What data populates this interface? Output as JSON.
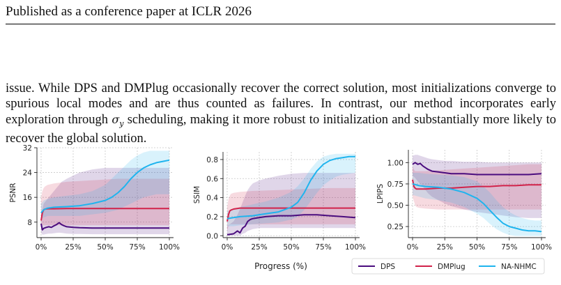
{
  "header": {
    "text": "Published as a conference paper at ICLR 2026"
  },
  "paragraph": {
    "part1": "issue. While DPS and DMPlug occasionally recover the correct solution, most initializations converge to spurious local modes and are thus counted as failures. In contrast, our method incorporates early exploration through ",
    "sigma": "σ",
    "sigma_sub": "y",
    "part2": " scheduling, making it more robust to initialization and substantially more likely to recover the global solution."
  },
  "figure": {
    "xlabel": "Progress (%)",
    "legend": [
      {
        "name": "DPS",
        "color": "#4a0c7e"
      },
      {
        "name": "DMPlug",
        "color": "#d1224a"
      },
      {
        "name": "NA-NHMC",
        "color": "#1fb4ee"
      }
    ]
  },
  "chart_data": [
    {
      "type": "line",
      "ylabel": "PSNR",
      "xticks": [
        "0%",
        "25%",
        "50%",
        "75%",
        "100%"
      ],
      "yticks": [
        "8",
        "16",
        "24",
        "32"
      ],
      "xlim": [
        0,
        100
      ],
      "ylim": [
        3,
        32
      ],
      "grid": true,
      "series": [
        {
          "name": "DPS",
          "x": [
            0,
            1,
            2,
            4,
            6,
            8,
            10,
            12,
            14,
            16,
            18,
            20,
            25,
            30,
            40,
            50,
            60,
            70,
            80,
            90,
            100
          ],
          "values": [
            7.5,
            5.5,
            6.0,
            6.3,
            6.5,
            6.3,
            6.8,
            7.2,
            7.8,
            7.2,
            6.8,
            6.5,
            6.3,
            6.2,
            6.1,
            6.1,
            6.1,
            6.1,
            6.1,
            6.1,
            6.1
          ],
          "band_low": [
            4.5,
            4.0,
            4.0,
            4.2,
            4.3,
            4.3,
            4.4,
            4.5,
            4.6,
            4.5,
            4.4,
            4.3,
            4.2,
            4.2,
            4.1,
            4.1,
            4.1,
            4.1,
            4.1,
            4.1,
            4.1
          ],
          "band_high": [
            11,
            12,
            14,
            15,
            16,
            17,
            18,
            19,
            20,
            21,
            21.5,
            22,
            23,
            24,
            25,
            25.5,
            25.5,
            25.5,
            25.5,
            25.5,
            25.5
          ]
        },
        {
          "name": "DMPlug",
          "x": [
            0,
            1,
            2,
            3,
            5,
            10,
            20,
            40,
            60,
            80,
            100
          ],
          "values": [
            8.5,
            11.0,
            12.0,
            12.2,
            12.3,
            12.3,
            12.4,
            12.4,
            12.4,
            12.4,
            12.4
          ],
          "band_low": [
            6,
            7,
            7,
            7,
            7,
            7,
            7,
            7,
            7,
            7,
            7
          ],
          "band_high": [
            16,
            18,
            19,
            19.5,
            20,
            20.5,
            21,
            21.5,
            22,
            22,
            22
          ]
        },
        {
          "name": "NA-NHMC",
          "x": [
            0,
            2,
            5,
            10,
            20,
            30,
            40,
            50,
            55,
            60,
            65,
            70,
            75,
            80,
            85,
            90,
            95,
            100
          ],
          "values": [
            11.0,
            12.0,
            12.5,
            12.8,
            13.0,
            13.3,
            14.0,
            15.0,
            16.0,
            17.5,
            19.5,
            22.0,
            24.0,
            25.5,
            26.5,
            27.2,
            27.6,
            28.0
          ],
          "band_low": [
            9,
            9.5,
            10,
            10,
            10,
            10,
            10.5,
            11,
            11.5,
            12,
            13,
            14,
            15,
            16,
            16.5,
            17,
            17,
            17
          ],
          "band_high": [
            14,
            15,
            15.5,
            16,
            16.5,
            17,
            18,
            20,
            22,
            24,
            26,
            28,
            29.5,
            30.5,
            31,
            31,
            31,
            31
          ]
        }
      ]
    },
    {
      "type": "line",
      "ylabel": "SSIM",
      "xticks": [
        "0%",
        "25%",
        "50%",
        "75%",
        "100%"
      ],
      "yticks": [
        "0.0",
        "0.2",
        "0.4",
        "0.6",
        "0.8"
      ],
      "xlim": [
        0,
        100
      ],
      "ylim": [
        -0.02,
        0.88
      ],
      "grid": true,
      "series": [
        {
          "name": "DPS",
          "x": [
            0,
            5,
            8,
            10,
            12,
            14,
            16,
            18,
            20,
            25,
            30,
            40,
            50,
            60,
            70,
            80,
            90,
            100
          ],
          "values": [
            0.01,
            0.02,
            0.05,
            0.03,
            0.08,
            0.1,
            0.15,
            0.17,
            0.18,
            0.19,
            0.2,
            0.21,
            0.21,
            0.22,
            0.22,
            0.21,
            0.2,
            0.19
          ],
          "band_low": [
            0.0,
            0.0,
            0.0,
            0.0,
            0.02,
            0.03,
            0.05,
            0.06,
            0.07,
            0.08,
            0.08,
            0.08,
            0.08,
            0.08,
            0.08,
            0.08,
            0.08,
            0.08
          ],
          "band_high": [
            0.1,
            0.15,
            0.22,
            0.28,
            0.35,
            0.42,
            0.48,
            0.52,
            0.55,
            0.58,
            0.6,
            0.63,
            0.65,
            0.66,
            0.66,
            0.66,
            0.66,
            0.66
          ]
        },
        {
          "name": "DMPlug",
          "x": [
            0,
            1,
            2,
            3,
            5,
            10,
            20,
            40,
            60,
            80,
            100
          ],
          "values": [
            0.15,
            0.22,
            0.26,
            0.27,
            0.28,
            0.29,
            0.29,
            0.29,
            0.29,
            0.29,
            0.29
          ],
          "band_low": [
            0.05,
            0.1,
            0.12,
            0.12,
            0.12,
            0.12,
            0.12,
            0.12,
            0.12,
            0.12,
            0.12
          ],
          "band_high": [
            0.3,
            0.38,
            0.42,
            0.44,
            0.45,
            0.46,
            0.47,
            0.48,
            0.49,
            0.5,
            0.5
          ]
        },
        {
          "name": "NA-NHMC",
          "x": [
            0,
            5,
            10,
            20,
            30,
            40,
            50,
            55,
            60,
            65,
            70,
            75,
            80,
            85,
            90,
            95,
            100
          ],
          "values": [
            0.18,
            0.19,
            0.2,
            0.21,
            0.23,
            0.25,
            0.3,
            0.35,
            0.45,
            0.58,
            0.68,
            0.75,
            0.79,
            0.81,
            0.82,
            0.83,
            0.83
          ],
          "band_low": [
            0.1,
            0.1,
            0.11,
            0.12,
            0.13,
            0.14,
            0.17,
            0.2,
            0.27,
            0.36,
            0.45,
            0.53,
            0.58,
            0.62,
            0.64,
            0.65,
            0.66
          ],
          "band_high": [
            0.26,
            0.28,
            0.3,
            0.33,
            0.36,
            0.4,
            0.46,
            0.52,
            0.6,
            0.7,
            0.78,
            0.83,
            0.85,
            0.86,
            0.86,
            0.86,
            0.86
          ]
        }
      ]
    },
    {
      "type": "line",
      "ylabel": "LPIPS",
      "xticks": [
        "0%",
        "25%",
        "50%",
        "75%",
        "100%"
      ],
      "yticks": [
        "0.25",
        "0.50",
        "0.75",
        "1.00"
      ],
      "xlim": [
        0,
        100
      ],
      "ylim": [
        0.12,
        1.15
      ],
      "grid": true,
      "series": [
        {
          "name": "DPS",
          "x": [
            0,
            2,
            4,
            6,
            8,
            10,
            12,
            15,
            20,
            25,
            30,
            40,
            50,
            60,
            70,
            80,
            90,
            100
          ],
          "values": [
            0.98,
            1.0,
            0.98,
            0.99,
            0.96,
            0.94,
            0.92,
            0.9,
            0.89,
            0.88,
            0.87,
            0.87,
            0.86,
            0.86,
            0.86,
            0.86,
            0.86,
            0.87
          ],
          "band_low": [
            0.85,
            0.82,
            0.78,
            0.75,
            0.72,
            0.68,
            0.64,
            0.6,
            0.56,
            0.52,
            0.49,
            0.45,
            0.42,
            0.4,
            0.38,
            0.36,
            0.35,
            0.35
          ],
          "band_high": [
            1.08,
            1.09,
            1.09,
            1.08,
            1.07,
            1.06,
            1.05,
            1.04,
            1.03,
            1.02,
            1.02,
            1.01,
            1.01,
            1.0,
            1.0,
            1.0,
            1.0,
            1.0
          ]
        },
        {
          "name": "DMPlug",
          "x": [
            0,
            1,
            2,
            3,
            5,
            10,
            20,
            30,
            40,
            50,
            60,
            70,
            80,
            90,
            100
          ],
          "values": [
            0.8,
            0.72,
            0.7,
            0.69,
            0.69,
            0.69,
            0.7,
            0.7,
            0.71,
            0.72,
            0.72,
            0.73,
            0.73,
            0.74,
            0.74
          ],
          "band_low": [
            0.6,
            0.55,
            0.5,
            0.48,
            0.47,
            0.46,
            0.45,
            0.45,
            0.45,
            0.45,
            0.45,
            0.45,
            0.45,
            0.45,
            0.45
          ],
          "band_high": [
            0.95,
            0.92,
            0.9,
            0.9,
            0.9,
            0.9,
            0.91,
            0.92,
            0.93,
            0.94,
            0.95,
            0.96,
            0.97,
            0.98,
            0.98
          ]
        },
        {
          "name": "NA-NHMC",
          "x": [
            0,
            5,
            10,
            20,
            30,
            40,
            50,
            55,
            60,
            65,
            70,
            75,
            80,
            85,
            90,
            95,
            100
          ],
          "values": [
            0.75,
            0.73,
            0.72,
            0.71,
            0.69,
            0.65,
            0.58,
            0.52,
            0.44,
            0.36,
            0.29,
            0.25,
            0.23,
            0.21,
            0.2,
            0.2,
            0.19
          ],
          "band_low": [
            0.62,
            0.6,
            0.58,
            0.56,
            0.53,
            0.48,
            0.4,
            0.35,
            0.28,
            0.22,
            0.18,
            0.15,
            0.14,
            0.14,
            0.14,
            0.14,
            0.14
          ],
          "band_high": [
            0.88,
            0.88,
            0.87,
            0.86,
            0.85,
            0.83,
            0.78,
            0.72,
            0.65,
            0.56,
            0.48,
            0.42,
            0.38,
            0.35,
            0.33,
            0.32,
            0.32
          ]
        }
      ]
    }
  ]
}
